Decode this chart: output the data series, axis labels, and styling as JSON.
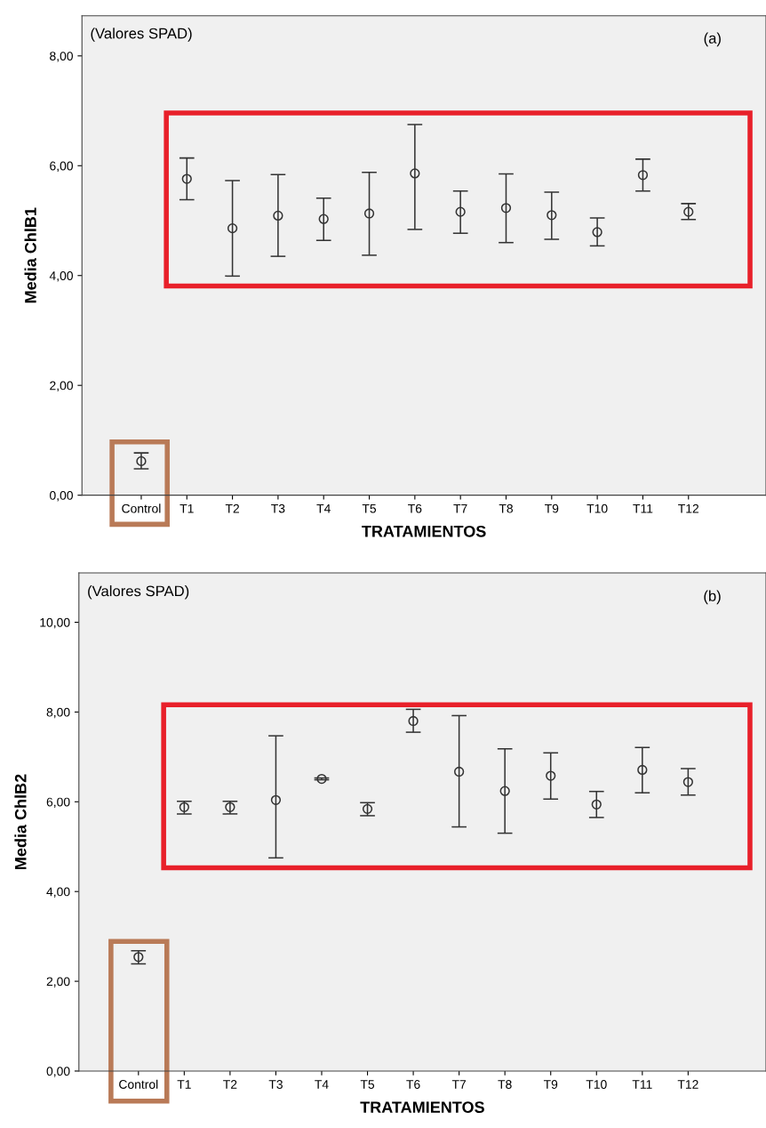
{
  "chart_data": [
    {
      "type": "scatter",
      "xlabel": "TRATAMIENTOS",
      "ylabel": "Media ChlB1",
      "annotations": [
        "(Valores SPAD)",
        "(a)"
      ],
      "categories": [
        "Control",
        "T1",
        "T2",
        "T3",
        "T4",
        "T5",
        "T6",
        "T7",
        "T8",
        "T9",
        "T10",
        "T11",
        "T12"
      ],
      "series": [
        {
          "color": "#333333",
          "values": [
            0.62,
            5.76,
            4.86,
            5.09,
            5.03,
            5.13,
            5.86,
            5.16,
            5.23,
            5.1,
            4.79,
            5.83,
            5.16
          ],
          "errors": [
            [
              0.48,
              0.77
            ],
            [
              5.38,
              6.14
            ],
            [
              3.99,
              5.73
            ],
            [
              4.35,
              5.84
            ],
            [
              4.64,
              5.41
            ],
            [
              4.37,
              5.88
            ],
            [
              4.84,
              6.75
            ],
            [
              4.77,
              5.54
            ],
            [
              4.6,
              5.85
            ],
            [
              4.66,
              5.52
            ],
            [
              4.54,
              5.05
            ],
            [
              5.54,
              6.12
            ],
            [
              5.02,
              5.31
            ]
          ]
        }
      ],
      "ylim": [
        0,
        8.73
      ],
      "yticks": [
        {
          "value": 0,
          "label": "0,00"
        },
        {
          "value": 2,
          "label": "2,00"
        },
        {
          "value": 4,
          "label": "4,00"
        },
        {
          "value": 6,
          "label": "6,00"
        },
        {
          "value": 8,
          "label": "8,00"
        }
      ],
      "marker": "circle",
      "grid": false,
      "legend": false
    },
    {
      "type": "scatter",
      "xlabel": "TRATAMIENTOS",
      "ylabel": "Media ChlB2",
      "annotations": [
        "(Valores SPAD)",
        "(b)"
      ],
      "categories": [
        "Control",
        "T1",
        "T2",
        "T3",
        "T4",
        "T5",
        "T6",
        "T7",
        "T8",
        "T9",
        "T10",
        "T11",
        "T12"
      ],
      "series": [
        {
          "color": "#333333",
          "values": [
            2.54,
            5.88,
            5.88,
            6.04,
            6.51,
            5.84,
            7.8,
            6.67,
            6.24,
            6.58,
            5.94,
            6.71,
            6.44
          ],
          "errors": [
            [
              2.39,
              2.68
            ],
            [
              5.73,
              6.01
            ],
            [
              5.73,
              6.01
            ],
            [
              4.75,
              7.47
            ],
            [
              6.49,
              6.53
            ],
            [
              5.69,
              5.98
            ],
            [
              7.55,
              8.06
            ],
            [
              5.44,
              7.92
            ],
            [
              5.3,
              7.18
            ],
            [
              6.06,
              7.09
            ],
            [
              5.65,
              6.23
            ],
            [
              6.2,
              7.21
            ],
            [
              6.15,
              6.74
            ]
          ]
        }
      ],
      "ylim": [
        0,
        11.1
      ],
      "yticks": [
        {
          "value": 0,
          "label": "0,00"
        },
        {
          "value": 2,
          "label": "2,00"
        },
        {
          "value": 4,
          "label": "4,00"
        },
        {
          "value": 6,
          "label": "6,00"
        },
        {
          "value": 8,
          "label": "8,00"
        },
        {
          "value": 10,
          "label": "10,00"
        }
      ],
      "marker": "circle",
      "grid": false,
      "legend": false
    }
  ]
}
